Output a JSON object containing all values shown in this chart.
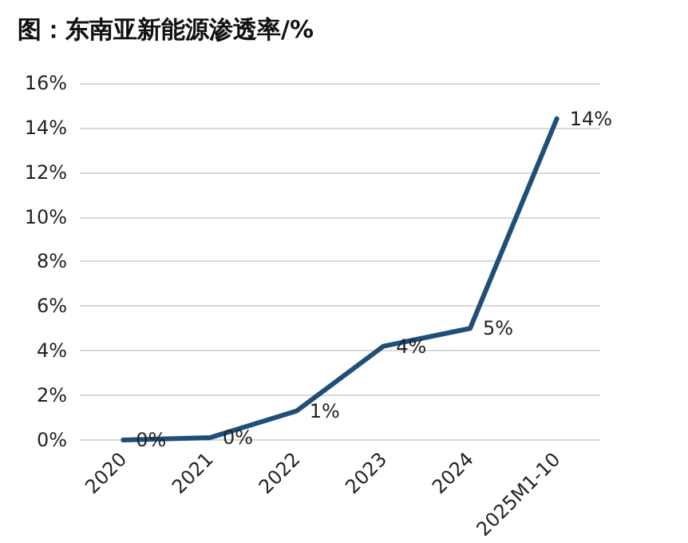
{
  "chart_data": {
    "type": "line",
    "title": "图：东南亚新能源渗透率/%",
    "categories": [
      "2020",
      "2021",
      "2022",
      "2023",
      "2024",
      "2025M1-10"
    ],
    "series": [
      {
        "color": "#1f4e79",
        "values": [
          0.0,
          0.1,
          1.3,
          4.2,
          5.0,
          14.4
        ],
        "value_labels": [
          "0%",
          "0%",
          "1%",
          "4%",
          "5%",
          "14%"
        ]
      }
    ],
    "ylim": [
      0,
      16
    ],
    "yticks": [
      {
        "value": 0,
        "label": "0%"
      },
      {
        "value": 2,
        "label": "2%"
      },
      {
        "value": 4,
        "label": "4%"
      },
      {
        "value": 6,
        "label": "6%"
      },
      {
        "value": 8,
        "label": "8%"
      },
      {
        "value": 10,
        "label": "10%"
      },
      {
        "value": 12,
        "label": "12%"
      },
      {
        "value": 14,
        "label": "14%"
      },
      {
        "value": 16,
        "label": "16%"
      }
    ],
    "grid": "y",
    "marker": "none",
    "line_style": "solid"
  }
}
